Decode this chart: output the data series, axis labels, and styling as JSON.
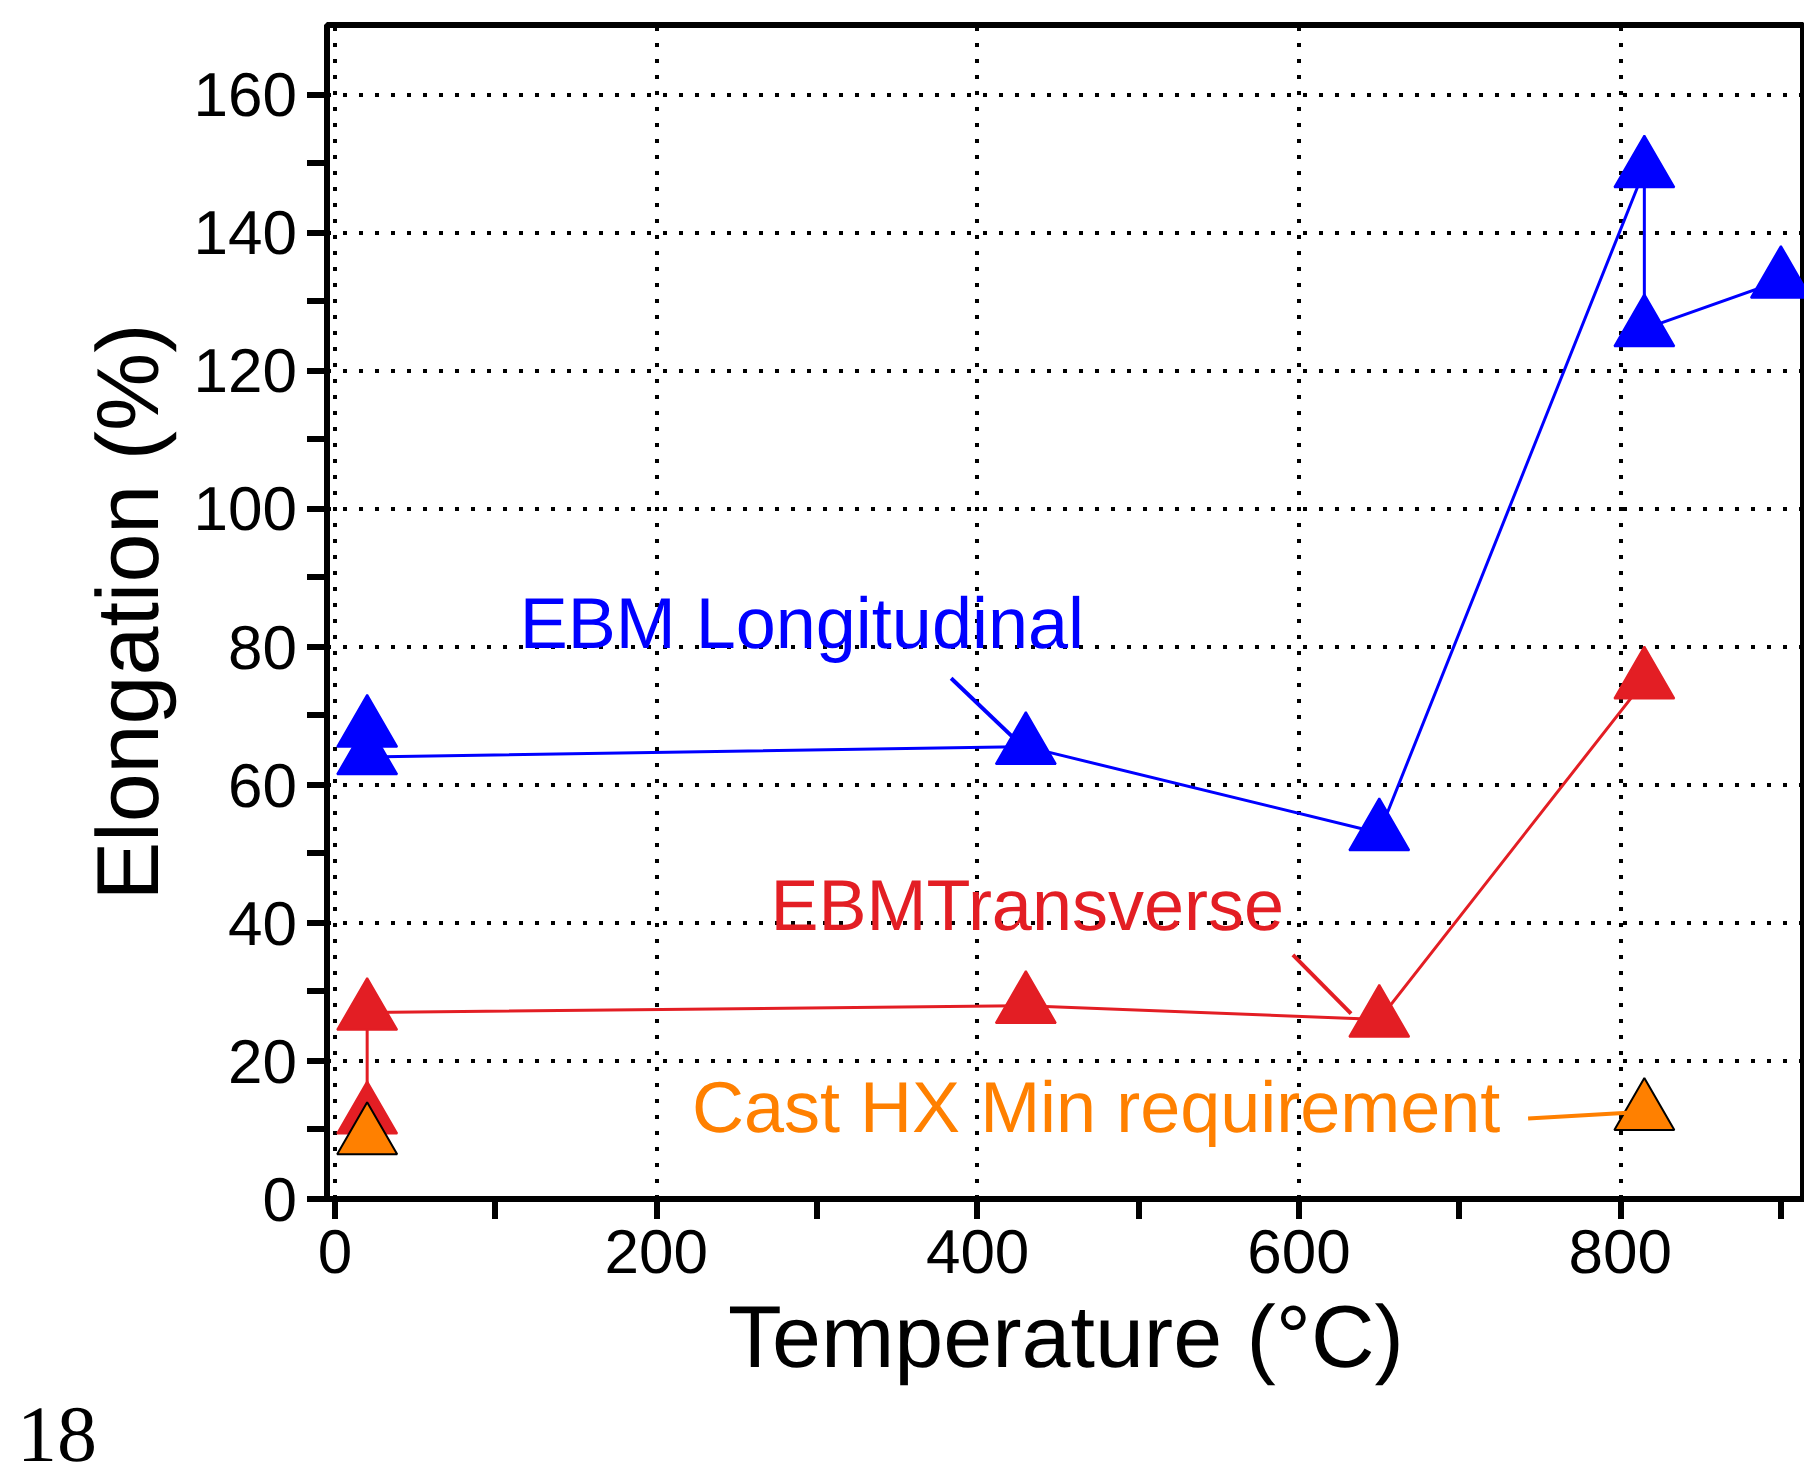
{
  "chart_data": {
    "type": "line",
    "xlabel": "Temperature (°C)",
    "ylabel": "Elongation (%)",
    "xlim": [
      -5,
      915
    ],
    "ylim": [
      0,
      170
    ],
    "xticks": [
      0,
      {
        "value": 100,
        "label": null
      },
      200,
      {
        "value": 300,
        "label": null
      },
      400,
      {
        "value": 500,
        "label": null
      },
      600,
      {
        "value": 700,
        "label": null
      },
      800,
      {
        "value": 900,
        "label": null
      }
    ],
    "yticks": [
      0,
      {
        "value": 10,
        "label": null
      },
      20,
      {
        "value": 30,
        "label": null
      },
      40,
      {
        "value": 50,
        "label": null
      },
      60,
      {
        "value": 70,
        "label": null
      },
      80,
      {
        "value": 90,
        "label": null
      },
      100,
      {
        "value": 110,
        "label": null
      },
      120,
      {
        "value": 130,
        "label": null
      },
      140,
      {
        "value": 150,
        "label": null
      },
      160
    ],
    "grid": true,
    "marker": "triangle",
    "line_style": "solid",
    "series": [
      {
        "type": "scatter",
        "color": "#0000ff",
        "x": [
          20
        ],
        "values": [
          68
        ]
      },
      {
        "color": "#0000ff",
        "x": [
          20,
          430,
          650,
          815,
          815,
          900
        ],
        "values": [
          64,
          65.5,
          53,
          149,
          126,
          133
        ]
      },
      {
        "color": "#e31e24",
        "x": [
          20,
          20,
          430,
          650,
          815
        ],
        "values": [
          12,
          27,
          28,
          26,
          75
        ]
      },
      {
        "type": "scatter",
        "color": "#ff8000",
        "x": [
          20,
          815
        ],
        "values": [
          9,
          12.5
        ]
      }
    ],
    "annotations": [
      {
        "text": "EBM Longitudinal",
        "x": 430,
        "y": 65.5
      },
      {
        "text": "EBMTransverse",
        "x": 650,
        "y": 26
      },
      {
        "text": "Cast HX Min requirement",
        "x": 815,
        "y": 12.5
      },
      "18"
    ]
  }
}
